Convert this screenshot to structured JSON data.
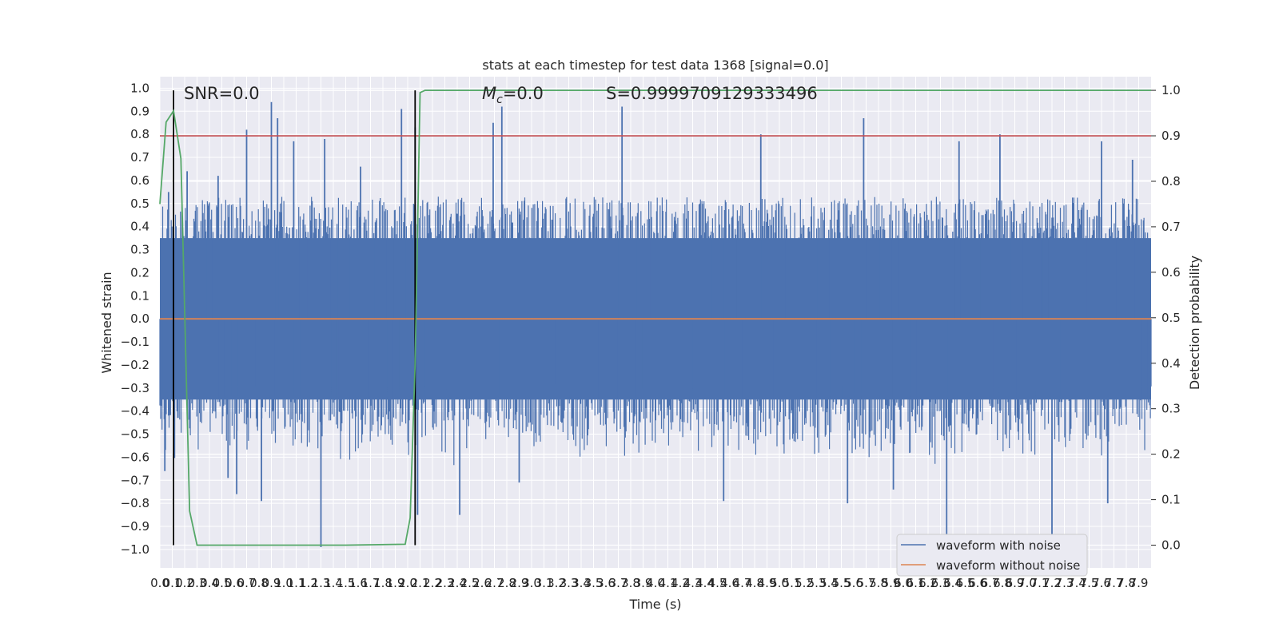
{
  "chart_data": {
    "type": "line",
    "title": "stats at each timestep for test data 1368 [signal=0.0]",
    "xlabel": "Time (s)",
    "ylabel": "Whitened strain",
    "y2label": "Detection probability",
    "xlim": [
      0.0,
      8.0
    ],
    "ylim": [
      -1.08,
      1.05
    ],
    "y2lim": [
      -0.05,
      1.03
    ],
    "x_ticks": [
      0.0,
      0.1,
      0.2,
      0.3,
      0.4,
      0.5,
      0.6,
      0.7,
      0.8,
      0.9,
      1.0,
      1.1,
      1.2,
      1.3,
      1.4,
      1.5,
      1.6,
      1.7,
      1.8,
      1.9,
      2.0,
      2.1,
      2.2,
      2.3,
      2.4,
      2.5,
      2.6,
      2.7,
      2.8,
      2.9,
      3.0,
      3.1,
      3.2,
      3.3,
      3.4,
      3.5,
      3.6,
      3.7,
      3.8,
      3.9,
      4.0,
      4.1,
      4.2,
      4.3,
      4.4,
      4.5,
      4.6,
      4.7,
      4.8,
      4.9,
      5.0,
      5.1,
      5.2,
      5.3,
      5.4,
      5.5,
      5.6,
      5.7,
      5.8,
      5.9,
      6.0,
      6.1,
      6.2,
      6.3,
      6.4,
      6.5,
      6.6,
      6.7,
      6.8,
      6.9,
      7.0,
      7.1,
      7.2,
      7.3,
      7.4,
      7.5,
      7.6,
      7.7,
      7.8,
      7.9
    ],
    "y_ticks": [
      -1.0,
      -0.9,
      -0.8,
      -0.7,
      -0.6,
      -0.5,
      -0.4,
      -0.3,
      -0.2,
      -0.1,
      0.0,
      0.1,
      0.2,
      0.3,
      0.4,
      0.5,
      0.6,
      0.7,
      0.8,
      0.9,
      1.0
    ],
    "y2_ticks": [
      0.0,
      0.1,
      0.2,
      0.3,
      0.4,
      0.5,
      0.6,
      0.7,
      0.8,
      0.9,
      1.0
    ],
    "annotations": {
      "snr": "SNR=0.0",
      "mc": "=0.0",
      "mc_symbol": "M",
      "mc_sub": "c",
      "s": "S=0.9999709129333496"
    },
    "series": [
      {
        "name": "waveform with noise",
        "color": "#4c72b0",
        "noise_band": [
          -0.35,
          0.35
        ],
        "spikes": [
          {
            "x": 0.04,
            "y": -0.66
          },
          {
            "x": 0.07,
            "y": 0.55
          },
          {
            "x": 0.22,
            "y": 0.64
          },
          {
            "x": 0.47,
            "y": 0.62
          },
          {
            "x": 0.55,
            "y": -0.69
          },
          {
            "x": 0.62,
            "y": -0.76
          },
          {
            "x": 0.7,
            "y": 0.82
          },
          {
            "x": 0.82,
            "y": -0.79
          },
          {
            "x": 0.9,
            "y": 0.94
          },
          {
            "x": 0.95,
            "y": 0.87
          },
          {
            "x": 1.08,
            "y": 0.77
          },
          {
            "x": 1.3,
            "y": -0.99
          },
          {
            "x": 1.33,
            "y": 0.78
          },
          {
            "x": 1.62,
            "y": 0.66
          },
          {
            "x": 1.95,
            "y": 0.91
          },
          {
            "x": 2.06,
            "y": 0.83
          },
          {
            "x": 2.08,
            "y": -0.85
          },
          {
            "x": 2.42,
            "y": -0.85
          },
          {
            "x": 2.69,
            "y": 0.85
          },
          {
            "x": 2.76,
            "y": 0.92
          },
          {
            "x": 2.9,
            "y": -0.71
          },
          {
            "x": 3.73,
            "y": 0.92
          },
          {
            "x": 4.55,
            "y": -0.79
          },
          {
            "x": 4.85,
            "y": 0.8
          },
          {
            "x": 5.55,
            "y": -0.8
          },
          {
            "x": 5.68,
            "y": 0.87
          },
          {
            "x": 5.92,
            "y": -0.74
          },
          {
            "x": 6.35,
            "y": -0.97
          },
          {
            "x": 6.45,
            "y": 0.77
          },
          {
            "x": 6.78,
            "y": 0.8
          },
          {
            "x": 7.2,
            "y": -0.97
          },
          {
            "x": 7.6,
            "y": 0.77
          },
          {
            "x": 7.65,
            "y": -0.8
          },
          {
            "x": 7.85,
            "y": 0.69
          }
        ]
      },
      {
        "name": "waveform without noise",
        "color": "#dd8452",
        "x": [
          0.0,
          8.0
        ],
        "y": [
          0.0,
          0.0
        ]
      },
      {
        "color": "#55a868",
        "axis": "y2",
        "x": [
          0.0,
          0.05,
          0.11,
          0.17,
          0.24,
          0.3,
          0.6,
          1.0,
          1.5,
          1.98,
          2.02,
          2.06,
          2.1,
          2.14,
          2.2,
          8.0
        ],
        "y": [
          0.75,
          0.93,
          0.955,
          0.85,
          0.075,
          0.0,
          0.0,
          0.0,
          0.0,
          0.002,
          0.06,
          0.4,
          0.995,
          1.0,
          1.0,
          1.0
        ]
      }
    ],
    "vlines": [
      {
        "x": 0.11,
        "color": "#000000"
      },
      {
        "x": 2.06,
        "color": "#000000"
      }
    ],
    "hlines": [
      {
        "y2": 0.9,
        "color": "#c44e52"
      }
    ],
    "grid": true,
    "background": "#eaeaf2",
    "legend": {
      "placement": "lower-right",
      "entries": [
        "waveform with noise",
        "waveform without noise"
      ]
    }
  }
}
